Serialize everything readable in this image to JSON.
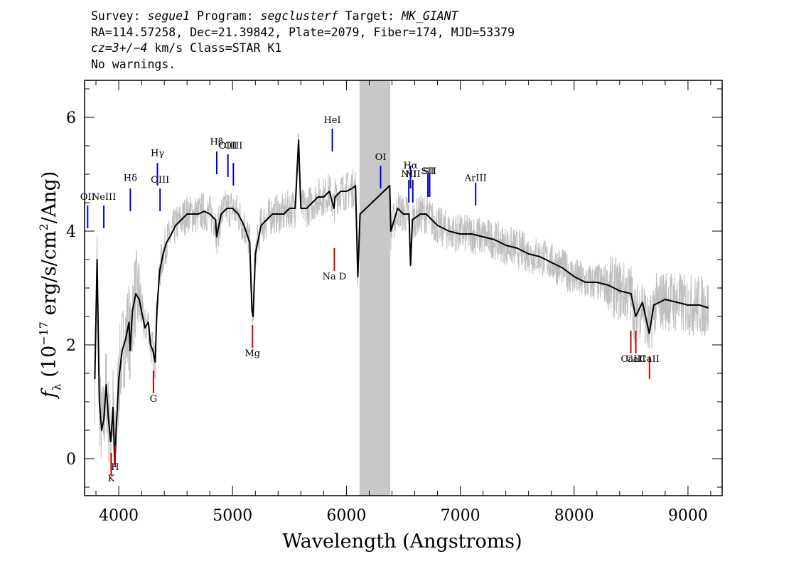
{
  "header": {
    "line1": {
      "survey_label": "Survey: ",
      "survey": "segue1",
      "program_label": " Program: ",
      "program": "segclusterf",
      "target_label": " Target: ",
      "target": "MK_GIANT"
    },
    "line2": "RA=114.57258, Dec=21.39842, Plate=2079, Fiber=174, MJD=53379",
    "line3": {
      "cz_label": "cz=3+/−4",
      "rest": " km/s Class=STAR K1"
    },
    "line4": "No warnings."
  },
  "chart_data": {
    "type": "line",
    "xlabel": "Wavelength (Angstroms)",
    "ylabel": "f_λ (10^-17 erg/s/cm²/Ang)",
    "xlim": [
      3700,
      9300
    ],
    "ylim": [
      -0.65,
      6.65
    ],
    "x_ticks": [
      4000,
      5000,
      6000,
      7000,
      8000,
      9000
    ],
    "x_tick_labels": [
      "4000",
      "5000",
      "6000",
      "7000",
      "8000",
      "9000"
    ],
    "y_ticks": [
      0,
      2,
      4,
      6
    ],
    "y_tick_labels": [
      "0",
      "2",
      "4",
      "6"
    ],
    "masked_region": [
      6115,
      6385
    ],
    "series": [
      {
        "style": "smoothed",
        "color": "#000000",
        "points": [
          [
            3790,
            1.4
          ],
          [
            3810,
            3.5
          ],
          [
            3830,
            1.0
          ],
          [
            3850,
            0.5
          ],
          [
            3870,
            0.7
          ],
          [
            3890,
            1.3
          ],
          [
            3910,
            0.7
          ],
          [
            3930,
            0.3
          ],
          [
            3950,
            0.9
          ],
          [
            3965,
            -0.1
          ],
          [
            3980,
            0.6
          ],
          [
            4000,
            1.4
          ],
          [
            4030,
            1.9
          ],
          [
            4060,
            2.1
          ],
          [
            4090,
            2.4
          ],
          [
            4100,
            1.9
          ],
          [
            4120,
            2.6
          ],
          [
            4150,
            2.9
          ],
          [
            4180,
            2.8
          ],
          [
            4200,
            2.6
          ],
          [
            4230,
            2.3
          ],
          [
            4260,
            2.4
          ],
          [
            4280,
            2.0
          ],
          [
            4300,
            1.9
          ],
          [
            4320,
            1.7
          ],
          [
            4335,
            2.6
          ],
          [
            4360,
            3.3
          ],
          [
            4390,
            3.6
          ],
          [
            4420,
            3.8
          ],
          [
            4450,
            3.9
          ],
          [
            4500,
            4.1
          ],
          [
            4550,
            4.2
          ],
          [
            4600,
            4.3
          ],
          [
            4650,
            4.3
          ],
          [
            4700,
            4.3
          ],
          [
            4750,
            4.35
          ],
          [
            4800,
            4.3
          ],
          [
            4850,
            4.2
          ],
          [
            4860,
            3.9
          ],
          [
            4900,
            4.3
          ],
          [
            4950,
            4.4
          ],
          [
            5000,
            4.4
          ],
          [
            5050,
            4.3
          ],
          [
            5100,
            4.1
          ],
          [
            5150,
            3.8
          ],
          [
            5170,
            2.6
          ],
          [
            5180,
            2.5
          ],
          [
            5200,
            3.6
          ],
          [
            5250,
            4.1
          ],
          [
            5300,
            4.2
          ],
          [
            5350,
            4.3
          ],
          [
            5400,
            4.3
          ],
          [
            5450,
            4.3
          ],
          [
            5500,
            4.4
          ],
          [
            5550,
            4.4
          ],
          [
            5580,
            5.6
          ],
          [
            5600,
            4.4
          ],
          [
            5650,
            4.4
          ],
          [
            5700,
            4.5
          ],
          [
            5750,
            4.6
          ],
          [
            5800,
            4.6
          ],
          [
            5850,
            4.7
          ],
          [
            5890,
            4.4
          ],
          [
            5900,
            4.6
          ],
          [
            5950,
            4.7
          ],
          [
            6000,
            4.7
          ],
          [
            6050,
            4.75
          ],
          [
            6080,
            4.8
          ],
          [
            6100,
            3.2
          ],
          [
            6120,
            4.3
          ],
          [
            6380,
            4.8
          ],
          [
            6390,
            4.0
          ],
          [
            6450,
            4.4
          ],
          [
            6500,
            4.3
          ],
          [
            6550,
            4.3
          ],
          [
            6563,
            3.4
          ],
          [
            6580,
            4.2
          ],
          [
            6650,
            4.3
          ],
          [
            6700,
            4.3
          ],
          [
            6750,
            4.2
          ],
          [
            6800,
            4.1
          ],
          [
            6900,
            4.0
          ],
          [
            7000,
            3.95
          ],
          [
            7100,
            3.95
          ],
          [
            7200,
            3.9
          ],
          [
            7300,
            3.85
          ],
          [
            7400,
            3.75
          ],
          [
            7500,
            3.7
          ],
          [
            7600,
            3.6
          ],
          [
            7700,
            3.55
          ],
          [
            7800,
            3.45
          ],
          [
            7900,
            3.35
          ],
          [
            8000,
            3.2
          ],
          [
            8100,
            3.1
          ],
          [
            8200,
            3.1
          ],
          [
            8300,
            3.05
          ],
          [
            8400,
            2.95
          ],
          [
            8500,
            2.9
          ],
          [
            8540,
            2.5
          ],
          [
            8600,
            2.75
          ],
          [
            8660,
            2.2
          ],
          [
            8700,
            2.7
          ],
          [
            8800,
            2.8
          ],
          [
            8900,
            2.75
          ],
          [
            9000,
            2.7
          ],
          [
            9100,
            2.7
          ],
          [
            9180,
            2.65
          ]
        ]
      }
    ],
    "lines": [
      {
        "label": "OII",
        "x": 3727,
        "color": "#0000cc",
        "marker": [
          4.05,
          4.45
        ],
        "label_y": 4.55
      },
      {
        "label": "NeIII",
        "x": 3869,
        "color": "#0000cc",
        "marker": [
          4.05,
          4.45
        ],
        "label_y": 4.55
      },
      {
        "label": "Hδ",
        "x": 4102,
        "color": "#0000cc",
        "marker": [
          4.35,
          4.75
        ],
        "label_y": 4.88
      },
      {
        "label": "Hγ",
        "x": 4340,
        "color": "#0000cc",
        "marker": [
          4.8,
          5.2
        ],
        "label_y": 5.32
      },
      {
        "label": "OIII",
        "x": 4363,
        "color": "#0000cc",
        "marker": [
          4.35,
          4.75
        ],
        "label_y": 4.85
      },
      {
        "label": "Hβ",
        "x": 4861,
        "color": "#0000cc",
        "marker": [
          5.0,
          5.4
        ],
        "label_y": 5.52
      },
      {
        "label": "OIII",
        "x": 4959,
        "color": "#0000cc",
        "marker": [
          4.95,
          5.35
        ],
        "label_y": 5.45
      },
      {
        "label": "OIII",
        "x": 5007,
        "color": "#0000cc",
        "marker": [
          4.8,
          5.2
        ],
        "label_y": 5.45
      },
      {
        "label": "HeI",
        "x": 5876,
        "color": "#0000cc",
        "marker": [
          5.4,
          5.8
        ],
        "label_y": 5.9
      },
      {
        "label": "OI",
        "x": 6300,
        "color": "#0000cc",
        "marker": [
          4.75,
          5.15
        ],
        "label_y": 5.25
      },
      {
        "label": "NII",
        "x": 6548,
        "color": "#0000cc",
        "marker": [
          4.5,
          4.9
        ],
        "label_y": 4.95
      },
      {
        "label": "Hα",
        "x": 6563,
        "color": "#0000cc",
        "marker": [
          4.75,
          5.15
        ],
        "label_y": 5.1
      },
      {
        "label": "NII",
        "x": 6583,
        "color": "#0000cc",
        "marker": [
          4.5,
          4.9
        ],
        "label_y": 4.95
      },
      {
        "label": "SII",
        "x": 6716,
        "color": "#0000cc",
        "marker": [
          4.6,
          5.0
        ],
        "label_y": 5.0
      },
      {
        "label": "SII",
        "x": 6731,
        "color": "#0000cc",
        "marker": [
          4.6,
          5.0
        ],
        "label_y": 5.0
      },
      {
        "label": "ArIII",
        "x": 7135,
        "color": "#0000cc",
        "marker": [
          4.45,
          4.85
        ],
        "label_y": 4.88
      },
      {
        "label": "K",
        "x": 3934,
        "color": "#cc0000",
        "marker": [
          0.1,
          -0.3
        ],
        "label_y": -0.4
      },
      {
        "label": "H",
        "x": 3968,
        "color": "#cc0000",
        "marker": [
          0.25,
          -0.15
        ],
        "label_y": -0.2
      },
      {
        "label": "G",
        "x": 4305,
        "color": "#cc0000",
        "marker": [
          1.55,
          1.15
        ],
        "label_y": 1.0
      },
      {
        "label": "Mg",
        "x": 5175,
        "color": "#cc0000",
        "marker": [
          2.35,
          1.95
        ],
        "label_y": 1.8
      },
      {
        "label": "Na D",
        "x": 5894,
        "color": "#cc0000",
        "marker": [
          3.7,
          3.3
        ],
        "label_y": 3.15
      },
      {
        "label": "CaII",
        "x": 8498,
        "color": "#cc0000",
        "marker": [
          2.25,
          1.85
        ],
        "label_y": 1.7
      },
      {
        "label": "CaII",
        "x": 8542,
        "color": "#cc0000",
        "marker": [
          2.25,
          1.85
        ],
        "label_y": 1.7
      },
      {
        "label": "CaII",
        "x": 8662,
        "color": "#cc0000",
        "marker": [
          1.8,
          1.4
        ],
        "label_y": 1.7
      }
    ],
    "colors": {
      "raw_flux": "#bfbfbf",
      "smoothed_flux": "#000000",
      "emission_lines": "#0000cc",
      "absorption_lines": "#cc0000",
      "masked": "#c8c8c8"
    }
  }
}
